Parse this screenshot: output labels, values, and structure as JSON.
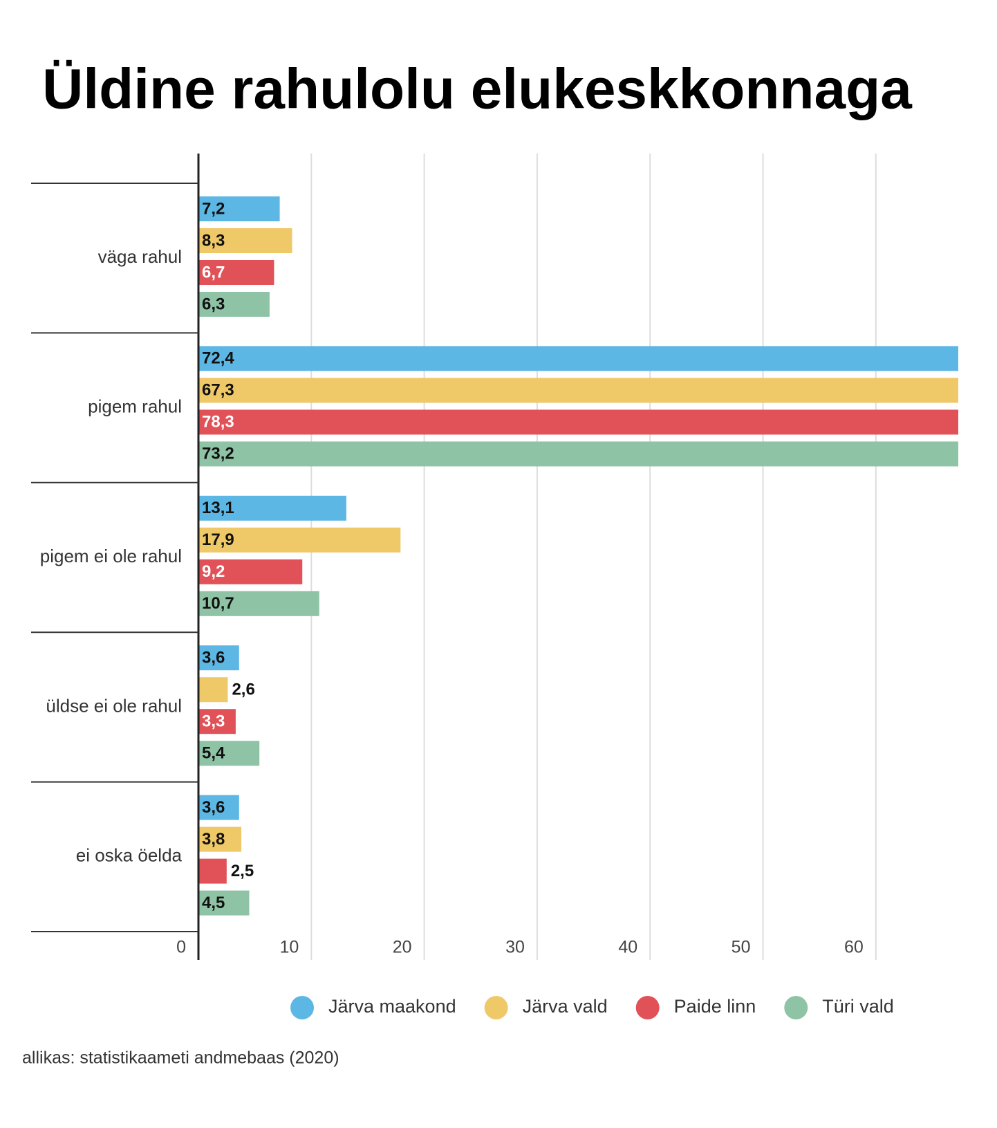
{
  "chart_data": {
    "type": "bar",
    "orientation": "horizontal",
    "title": "Üldine rahulolu elukeskkonnaga",
    "categories": [
      "väga rahul",
      "pigem rahul",
      "pigem ei ole rahul",
      "üldse ei ole rahul",
      "ei oska öelda"
    ],
    "series": [
      {
        "name": "Järva maakond",
        "color": "#5db7e4",
        "values": [
          7.2,
          72.4,
          13.1,
          3.6,
          3.6
        ],
        "value_labels": [
          "7,2",
          "72,4",
          "13,1",
          "3,6",
          "3,6"
        ]
      },
      {
        "name": "Järva vald",
        "color": "#efc868",
        "values": [
          8.3,
          67.3,
          17.9,
          2.6,
          3.8
        ],
        "value_labels": [
          "8,3",
          "67,3",
          "17,9",
          "2,6",
          "3,8"
        ]
      },
      {
        "name": "Paide linn",
        "color": "#e05257",
        "values": [
          6.7,
          78.3,
          9.2,
          3.3,
          2.5
        ],
        "value_labels": [
          "6,7",
          "78,3",
          "9,2",
          "3,3",
          "2,5"
        ]
      },
      {
        "name": "Türi vald",
        "color": "#8fc3a5",
        "values": [
          6.3,
          73.2,
          10.7,
          5.4,
          4.5
        ],
        "value_labels": [
          "6,3",
          "73,2",
          "10,7",
          "5,4",
          "4,5"
        ]
      }
    ],
    "xlim": [
      0,
      67.3
    ],
    "xticks": [
      0,
      10,
      20,
      30,
      40,
      50,
      60
    ],
    "grid": true,
    "legend": "bottom",
    "source": "allikas: statistikaameti andmebaas (2020)"
  }
}
